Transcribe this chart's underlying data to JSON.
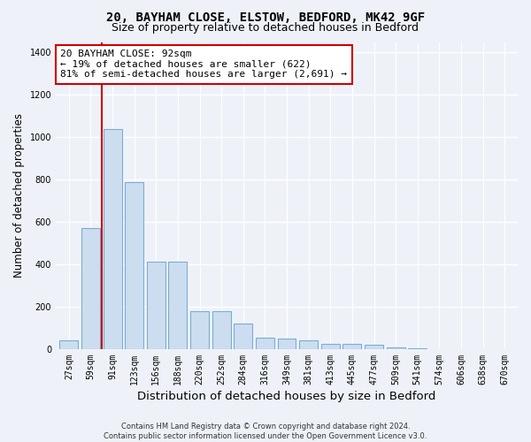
{
  "title_line1": "20, BAYHAM CLOSE, ELSTOW, BEDFORD, MK42 9GF",
  "title_line2": "Size of property relative to detached houses in Bedford",
  "xlabel": "Distribution of detached houses by size in Bedford",
  "ylabel": "Number of detached properties",
  "bar_color": "#ccddf0",
  "bar_edgecolor": "#7aadd4",
  "vline_color": "#cc0000",
  "vline_x": 1.5,
  "annotation_text": "20 BAYHAM CLOSE: 92sqm\n← 19% of detached houses are smaller (622)\n81% of semi-detached houses are larger (2,691) →",
  "annotation_box_edgecolor": "#cc0000",
  "categories": [
    "27sqm",
    "59sqm",
    "91sqm",
    "123sqm",
    "156sqm",
    "188sqm",
    "220sqm",
    "252sqm",
    "284sqm",
    "316sqm",
    "349sqm",
    "381sqm",
    "413sqm",
    "445sqm",
    "477sqm",
    "509sqm",
    "541sqm",
    "574sqm",
    "606sqm",
    "638sqm",
    "670sqm"
  ],
  "values": [
    40,
    570,
    1040,
    790,
    415,
    415,
    180,
    180,
    120,
    55,
    50,
    40,
    25,
    25,
    20,
    10,
    5,
    0,
    0,
    0,
    0
  ],
  "ylim": [
    0,
    1450
  ],
  "yticks": [
    0,
    200,
    400,
    600,
    800,
    1000,
    1200,
    1400
  ],
  "footer_text": "Contains HM Land Registry data © Crown copyright and database right 2024.\nContains public sector information licensed under the Open Government Licence v3.0.",
  "background_color": "#eef2f8",
  "plot_bg_color": "#eef2f8",
  "grid_color": "#ffffff",
  "title_fontsize": 10,
  "subtitle_fontsize": 9,
  "tick_fontsize": 7,
  "ylabel_fontsize": 8.5,
  "xlabel_fontsize": 9.5,
  "annotation_fontsize": 8,
  "footer_fontsize": 6
}
